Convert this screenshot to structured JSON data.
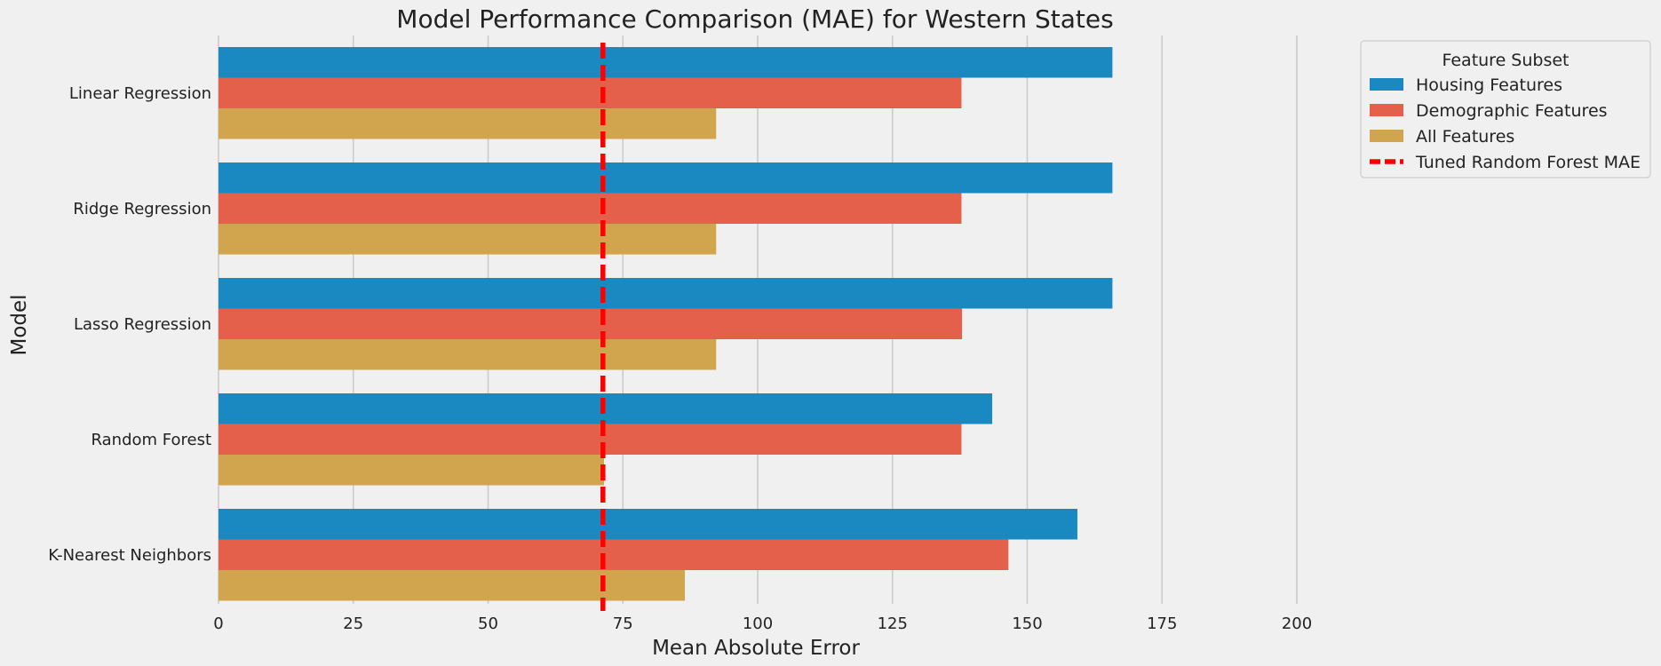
{
  "chart_data": {
    "type": "bar",
    "orientation": "horizontal",
    "title": "Model Performance Comparison (MAE) for Western States",
    "xlabel": "Mean Absolute Error",
    "ylabel": "Model",
    "xlim": [
      0,
      200
    ],
    "xticks": [
      0,
      25,
      50,
      75,
      100,
      125,
      150,
      175,
      200
    ],
    "grid": "vertical",
    "categories": [
      "Linear Regression",
      "Ridge Regression",
      "Lasso Regression",
      "Random Forest",
      "K-Nearest Neighbors"
    ],
    "series": [
      {
        "name": "Housing Features",
        "color": "#1a88c1",
        "values": [
          165.8,
          165.8,
          165.8,
          143.5,
          159.3
        ]
      },
      {
        "name": "Demographic Features",
        "color": "#e5604a",
        "values": [
          137.8,
          137.8,
          137.9,
          137.8,
          146.5
        ]
      },
      {
        "name": "All Features",
        "color": "#d0a54d",
        "values": [
          92.3,
          92.3,
          92.3,
          71.5,
          86.5
        ]
      }
    ],
    "reference_line": {
      "name": "Tuned Random Forest MAE",
      "value": 71.3,
      "color": "#ff0000",
      "style": "dashed"
    },
    "legend": {
      "title": "Feature Subset",
      "placement": "upper-right-outside"
    }
  }
}
